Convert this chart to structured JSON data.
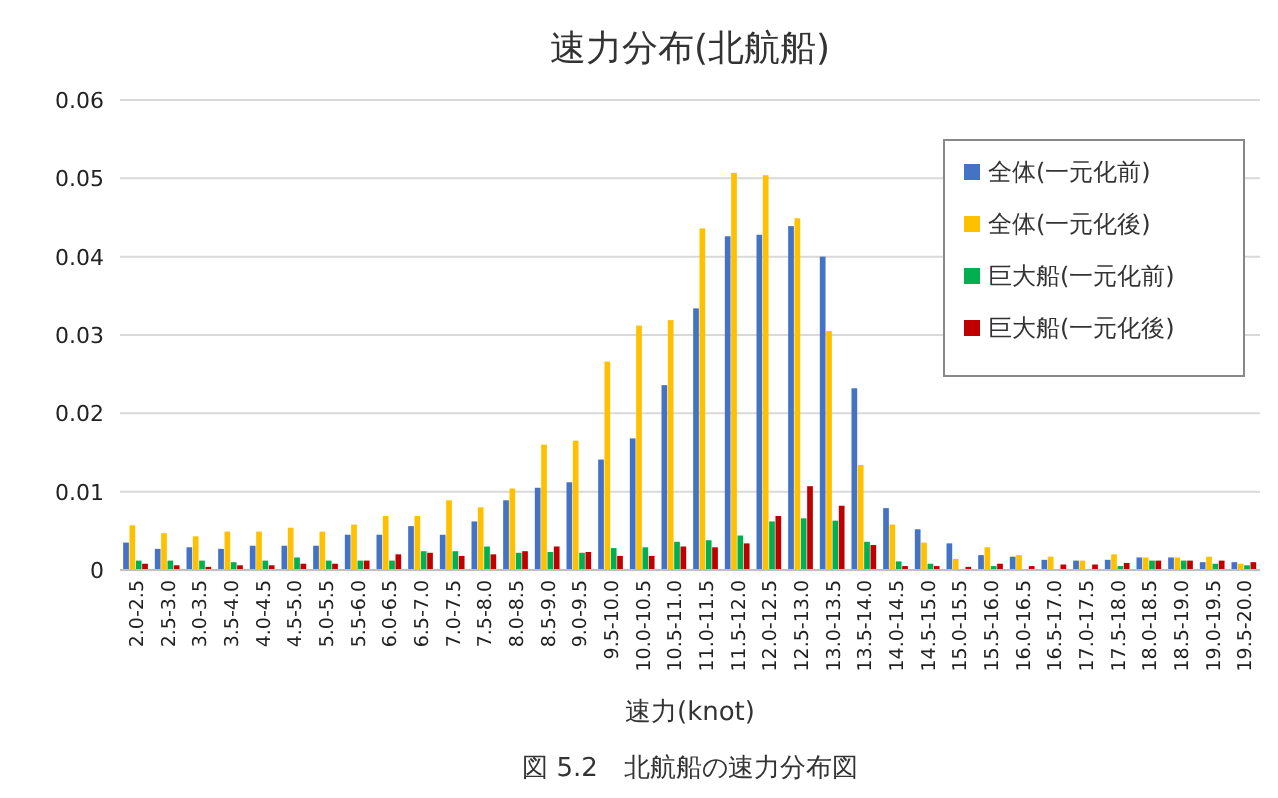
{
  "chart_data": {
    "type": "bar",
    "title": "速力分布(北航船)",
    "xlabel": "速力(knot)",
    "annotations": [
      "図 5.2　北航船の速力分布図"
    ],
    "categories": [
      "2.0-2.5",
      "2.5-3.0",
      "3.0-3.5",
      "3.5-4.0",
      "4.0-4.5",
      "4.5-5.0",
      "5.0-5.5",
      "5.5-6.0",
      "6.0-6.5",
      "6.5-7.0",
      "7.0-7.5",
      "7.5-8.0",
      "8.0-8.5",
      "8.5-9.0",
      "9.0-9.5",
      "9.5-10.0",
      "10.0-10.5",
      "10.5-11.0",
      "11.0-11.5",
      "11.5-12.0",
      "12.0-12.5",
      "12.5-13.0",
      "13.0-13.5",
      "13.5-14.0",
      "14.0-14.5",
      "14.5-15.0",
      "15.0-15.5",
      "15.5-16.0",
      "16.0-16.5",
      "16.5-17.0",
      "17.0-17.5",
      "17.5-18.0",
      "18.0-18.5",
      "18.5-19.0",
      "19.0-19.5",
      "19.5-20.0"
    ],
    "series": [
      {
        "name": "全体(一元化前)",
        "color": "#4472c4",
        "values": [
          0.0035,
          0.0027,
          0.0029,
          0.0027,
          0.0031,
          0.0031,
          0.0031,
          0.0045,
          0.0045,
          0.0056,
          0.0045,
          0.0062,
          0.0089,
          0.0105,
          0.0112,
          0.0141,
          0.0168,
          0.0236,
          0.0334,
          0.0426,
          0.0428,
          0.0439,
          0.04,
          0.0232,
          0.0079,
          0.0052,
          0.0034,
          0.0019,
          0.0017,
          0.0013,
          0.0012,
          0.0013,
          0.0016,
          0.0016,
          0.001,
          0.001
        ]
      },
      {
        "name": "全体(一元化後)",
        "color": "#ffc000",
        "values": [
          0.0057,
          0.0047,
          0.0043,
          0.0049,
          0.0049,
          0.0054,
          0.0049,
          0.0058,
          0.0069,
          0.0069,
          0.0089,
          0.008,
          0.0104,
          0.016,
          0.0165,
          0.0266,
          0.0312,
          0.0319,
          0.0436,
          0.0507,
          0.0504,
          0.0449,
          0.0305,
          0.0134,
          0.0058,
          0.0035,
          0.0014,
          0.0029,
          0.0019,
          0.0017,
          0.0012,
          0.002,
          0.0016,
          0.0016,
          0.0017,
          0.0008
        ]
      },
      {
        "name": "巨大船(一元化前)",
        "color": "#00b050",
        "values": [
          0.0012,
          0.0012,
          0.0012,
          0.001,
          0.0012,
          0.0016,
          0.0012,
          0.0012,
          0.0012,
          0.0024,
          0.0024,
          0.003,
          0.0022,
          0.0023,
          0.0022,
          0.0028,
          0.0029,
          0.0036,
          0.0038,
          0.0044,
          0.0062,
          0.0066,
          0.0063,
          0.0036,
          0.0011,
          0.0008,
          null,
          0.0005,
          null,
          null,
          null,
          0.0005,
          0.0012,
          0.0012,
          0.0008,
          0.0006
        ]
      },
      {
        "name": "巨大船(一元化後)",
        "color": "#c00000",
        "values": [
          0.0008,
          0.0006,
          0.0004,
          0.0006,
          0.0006,
          0.0008,
          0.0008,
          0.0012,
          0.002,
          0.0022,
          0.0018,
          0.002,
          0.0024,
          0.003,
          0.0023,
          0.0018,
          0.0018,
          0.003,
          0.0029,
          0.0034,
          0.0069,
          0.0107,
          0.0082,
          0.0032,
          0.0005,
          0.0005,
          0.0004,
          0.0008,
          0.0005,
          0.0007,
          0.0007,
          0.0009,
          0.0012,
          0.0012,
          0.0012,
          0.001
        ]
      }
    ],
    "ylim": [
      0,
      0.06
    ],
    "yticks": [
      0,
      0.01,
      0.02,
      0.03,
      0.04,
      0.05,
      0.06
    ],
    "grid": "y",
    "legend": "top right"
  }
}
